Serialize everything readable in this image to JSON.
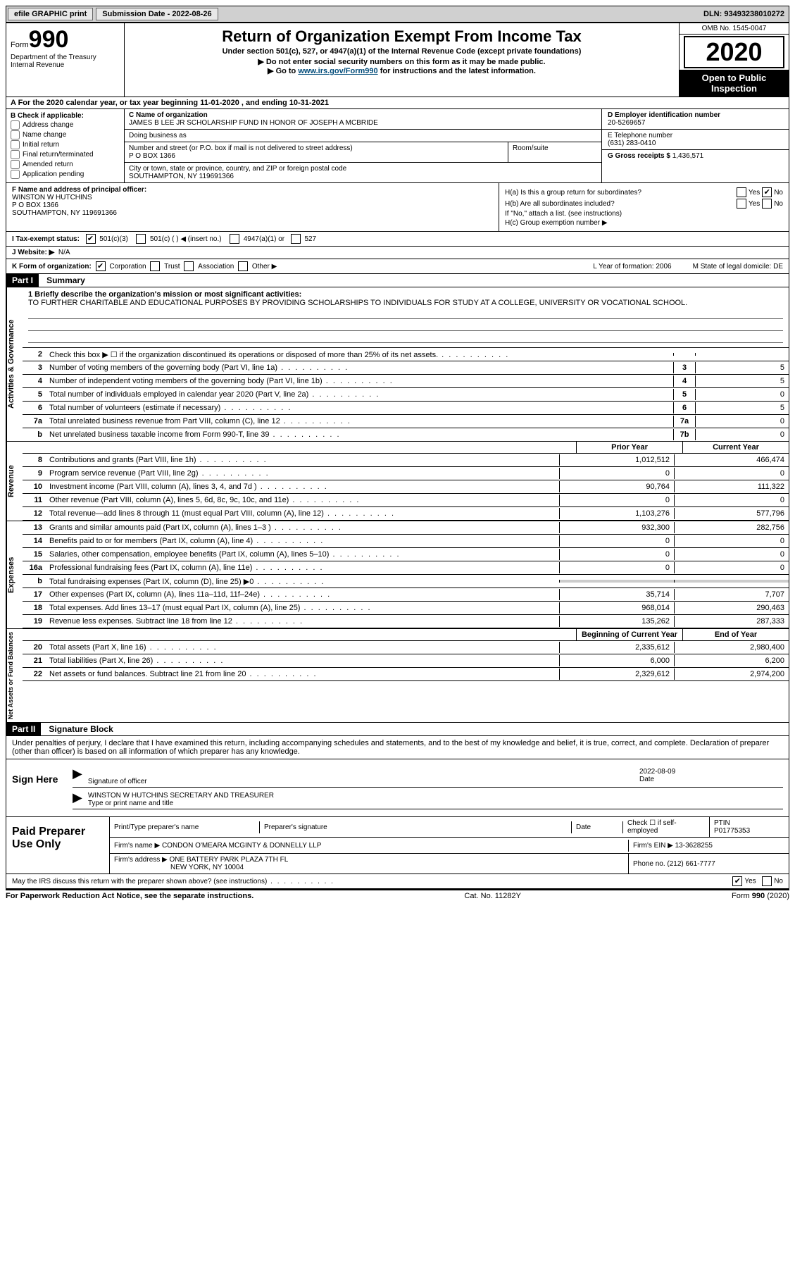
{
  "topbar": {
    "efile": "efile GRAPHIC print",
    "submission_label": "Submission Date - 2022-08-26",
    "dln_label": "DLN: 93493238010272"
  },
  "header": {
    "form_word": "Form",
    "form_num": "990",
    "dept": "Department of the Treasury",
    "irs": "Internal Revenue",
    "title": "Return of Organization Exempt From Income Tax",
    "subtitle": "Under section 501(c), 527, or 4947(a)(1) of the Internal Revenue Code (except private foundations)",
    "note1": "▶ Do not enter social security numbers on this form as it may be made public.",
    "note2_pre": "▶ Go to ",
    "note2_link": "www.irs.gov/Form990",
    "note2_post": " for instructions and the latest information.",
    "omb": "OMB No. 1545-0047",
    "year": "2020",
    "open": "Open to Public Inspection"
  },
  "period": "A For the 2020 calendar year, or tax year beginning 11-01-2020    , and ending 10-31-2021",
  "b": {
    "title": "B Check if applicable:",
    "items": [
      "Address change",
      "Name change",
      "Initial return",
      "Final return/terminated",
      "Amended return",
      "Application pending"
    ]
  },
  "c": {
    "name_label": "C Name of organization",
    "name": "JAMES B LEE JR SCHOLARSHIP FUND IN HONOR OF JOSEPH A MCBRIDE",
    "dba_label": "Doing business as",
    "addr_label": "Number and street (or P.O. box if mail is not delivered to street address)",
    "addr": "P O BOX 1366",
    "room_label": "Room/suite",
    "city_label": "City or town, state or province, country, and ZIP or foreign postal code",
    "city": "SOUTHAMPTON, NY  119691366"
  },
  "d": {
    "label": "D Employer identification number",
    "value": "20-5269657"
  },
  "e": {
    "label": "E Telephone number",
    "value": "(631) 283-0410"
  },
  "g": {
    "label": "G Gross receipts $",
    "value": "1,436,571"
  },
  "f": {
    "label": "F Name and address of principal officer:",
    "name": "WINSTON W HUTCHINS",
    "addr1": "P O BOX 1366",
    "addr2": "SOUTHAMPTON, NY 119691366"
  },
  "h": {
    "a_label": "H(a)  Is this a group return for subordinates?",
    "b_label": "H(b)  Are all subordinates included?",
    "b_note": "If \"No,\" attach a list. (see instructions)",
    "c_label": "H(c)  Group exemption number ▶",
    "yes": "Yes",
    "no": "No"
  },
  "i": {
    "label": "I    Tax-exempt status:",
    "opts": [
      "501(c)(3)",
      "501(c) (  ) ◀ (insert no.)",
      "4947(a)(1) or",
      "527"
    ]
  },
  "j": {
    "label": "J   Website: ▶",
    "value": "N/A"
  },
  "k": {
    "label": "K Form of organization:",
    "opts": [
      "Corporation",
      "Trust",
      "Association",
      "Other ▶"
    ],
    "l": "L Year of formation: 2006",
    "m": "M State of legal domicile: DE"
  },
  "part1": {
    "header": "Part I",
    "title": "Summary"
  },
  "mission": {
    "label": "1   Briefly describe the organization's mission or most significant activities:",
    "text": "TO FURTHER CHARITABLE AND EDUCATIONAL PURPOSES BY PROVIDING SCHOLARSHIPS TO INDIVIDUALS FOR STUDY AT A COLLEGE, UNIVERSITY OR VOCATIONAL SCHOOL."
  },
  "gov_lines": [
    {
      "n": "2",
      "t": "Check this box ▶ ☐  if the organization discontinued its operations or disposed of more than 25% of its net assets.",
      "box": "",
      "v": ""
    },
    {
      "n": "3",
      "t": "Number of voting members of the governing body (Part VI, line 1a)",
      "box": "3",
      "v": "5"
    },
    {
      "n": "4",
      "t": "Number of independent voting members of the governing body (Part VI, line 1b)",
      "box": "4",
      "v": "5"
    },
    {
      "n": "5",
      "t": "Total number of individuals employed in calendar year 2020 (Part V, line 2a)",
      "box": "5",
      "v": "0"
    },
    {
      "n": "6",
      "t": "Total number of volunteers (estimate if necessary)",
      "box": "6",
      "v": "5"
    },
    {
      "n": "7a",
      "t": "Total unrelated business revenue from Part VIII, column (C), line 12",
      "box": "7a",
      "v": "0"
    },
    {
      "n": "b",
      "t": "Net unrelated business taxable income from Form 990-T, line 39",
      "box": "7b",
      "v": "0"
    }
  ],
  "cols": {
    "prior": "Prior Year",
    "current": "Current Year",
    "begin": "Beginning of Current Year",
    "end": "End of Year"
  },
  "revenue": [
    {
      "n": "8",
      "t": "Contributions and grants (Part VIII, line 1h)",
      "p": "1,012,512",
      "c": "466,474"
    },
    {
      "n": "9",
      "t": "Program service revenue (Part VIII, line 2g)",
      "p": "0",
      "c": "0"
    },
    {
      "n": "10",
      "t": "Investment income (Part VIII, column (A), lines 3, 4, and 7d )",
      "p": "90,764",
      "c": "111,322"
    },
    {
      "n": "11",
      "t": "Other revenue (Part VIII, column (A), lines 5, 6d, 8c, 9c, 10c, and 11e)",
      "p": "0",
      "c": "0"
    },
    {
      "n": "12",
      "t": "Total revenue—add lines 8 through 11 (must equal Part VIII, column (A), line 12)",
      "p": "1,103,276",
      "c": "577,796"
    }
  ],
  "expenses": [
    {
      "n": "13",
      "t": "Grants and similar amounts paid (Part IX, column (A), lines 1–3 )",
      "p": "932,300",
      "c": "282,756"
    },
    {
      "n": "14",
      "t": "Benefits paid to or for members (Part IX, column (A), line 4)",
      "p": "0",
      "c": "0"
    },
    {
      "n": "15",
      "t": "Salaries, other compensation, employee benefits (Part IX, column (A), lines 5–10)",
      "p": "0",
      "c": "0"
    },
    {
      "n": "16a",
      "t": "Professional fundraising fees (Part IX, column (A), line 11e)",
      "p": "0",
      "c": "0"
    },
    {
      "n": "b",
      "t": "Total fundraising expenses (Part IX, column (D), line 25) ▶0",
      "p": "",
      "c": "",
      "shaded": true
    },
    {
      "n": "17",
      "t": "Other expenses (Part IX, column (A), lines 11a–11d, 11f–24e)",
      "p": "35,714",
      "c": "7,707"
    },
    {
      "n": "18",
      "t": "Total expenses. Add lines 13–17 (must equal Part IX, column (A), line 25)",
      "p": "968,014",
      "c": "290,463"
    },
    {
      "n": "19",
      "t": "Revenue less expenses. Subtract line 18 from line 12",
      "p": "135,262",
      "c": "287,333"
    }
  ],
  "netassets": [
    {
      "n": "20",
      "t": "Total assets (Part X, line 16)",
      "p": "2,335,612",
      "c": "2,980,400"
    },
    {
      "n": "21",
      "t": "Total liabilities (Part X, line 26)",
      "p": "6,000",
      "c": "6,200"
    },
    {
      "n": "22",
      "t": "Net assets or fund balances. Subtract line 21 from line 20",
      "p": "2,329,612",
      "c": "2,974,200"
    }
  ],
  "tabs": {
    "gov": "Activities & Governance",
    "rev": "Revenue",
    "exp": "Expenses",
    "net": "Net Assets or Fund Balances"
  },
  "part2": {
    "header": "Part II",
    "title": "Signature Block"
  },
  "sig": {
    "declaration": "Under penalties of perjury, I declare that I have examined this return, including accompanying schedules and statements, and to the best of my knowledge and belief, it is true, correct, and complete. Declaration of preparer (other than officer) is based on all information of which preparer has any knowledge.",
    "sign_here": "Sign Here",
    "sig_officer": "Signature of officer",
    "date": "Date",
    "date_val": "2022-08-09",
    "name_title": "WINSTON W HUTCHINS  SECRETARY AND TREASURER",
    "type_name": "Type or print name and title"
  },
  "paid": {
    "label": "Paid Preparer Use Only",
    "print_name": "Print/Type preparer's name",
    "prep_sig": "Preparer's signature",
    "date": "Date",
    "check_se": "Check ☐ if self-employed",
    "ptin_label": "PTIN",
    "ptin": "P01775353",
    "firm_name_label": "Firm's name    ▶",
    "firm_name": "CONDON O'MEARA MCGINTY & DONNELLY LLP",
    "firm_ein_label": "Firm's EIN ▶",
    "firm_ein": "13-3628255",
    "firm_addr_label": "Firm's address ▶",
    "firm_addr1": "ONE BATTERY PARK PLAZA 7TH FL",
    "firm_addr2": "NEW YORK, NY  10004",
    "phone_label": "Phone no.",
    "phone": "(212) 661-7777"
  },
  "discuss": {
    "text": "May the IRS discuss this return with the preparer shown above? (see instructions)",
    "yes": "Yes",
    "no": "No"
  },
  "footer": {
    "left": "For Paperwork Reduction Act Notice, see the separate instructions.",
    "mid": "Cat. No. 11282Y",
    "right": "Form 990 (2020)"
  }
}
